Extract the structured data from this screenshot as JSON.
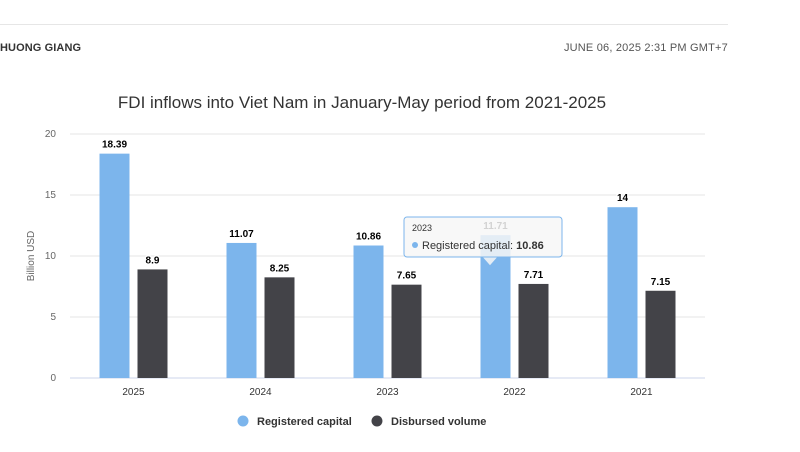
{
  "article": {
    "author": "HUONG GIANG",
    "timestamp": "JUNE 06, 2025 2:31 PM GMT+7"
  },
  "chart_data": {
    "type": "bar",
    "title": "FDI inflows into Viet Nam in January-May period from 2021-2025",
    "xlabel": "",
    "ylabel": "Billion USD",
    "ylim": [
      0,
      20
    ],
    "yticks": [
      0,
      5,
      10,
      15,
      20
    ],
    "grid": true,
    "legend_position": "bottom",
    "categories": [
      "2025",
      "2024",
      "2023",
      "2022",
      "2021"
    ],
    "series": [
      {
        "name": "Registered capital",
        "color": "#7cb5ec",
        "values": [
          18.39,
          11.07,
          10.86,
          11.71,
          14
        ],
        "labels": [
          "18.39",
          "11.07",
          "10.86",
          "11.71",
          "14"
        ]
      },
      {
        "name": "Disbursed volume",
        "color": "#434348",
        "values": [
          8.9,
          8.25,
          7.65,
          7.71,
          7.15
        ],
        "labels": [
          "8.9",
          "8.25",
          "7.65",
          "7.71",
          "7.15"
        ]
      }
    ],
    "tooltip": {
      "category": "2023",
      "series": "Registered capital",
      "value": "10.86"
    }
  }
}
